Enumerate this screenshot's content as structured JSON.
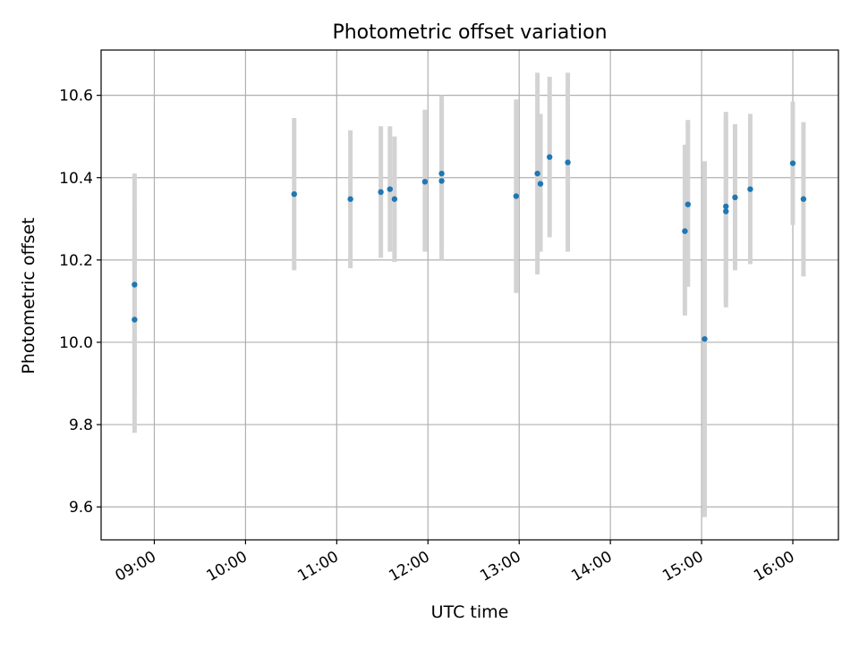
{
  "chart_data": {
    "type": "scatter",
    "title": "Photometric offset variation",
    "xlabel": "UTC time",
    "ylabel": "Photometric offset",
    "xlim": [
      "08:25",
      "16:30"
    ],
    "ylim": [
      9.52,
      10.71
    ],
    "x_tick_labels": [
      "09:00",
      "10:00",
      "11:00",
      "12:00",
      "13:00",
      "14:00",
      "15:00",
      "16:00"
    ],
    "y_tick_labels": [
      "9.6",
      "9.8",
      "10.0",
      "10.2",
      "10.4",
      "10.6"
    ],
    "grid": true,
    "errorbar_color": "#d3d3d3",
    "marker_color": "#1f77b4",
    "points": [
      {
        "time": "08:47",
        "value": 10.14,
        "lower": 9.87,
        "upper": 10.41
      },
      {
        "time": "08:47",
        "value": 10.055,
        "lower": 9.78,
        "upper": 10.33
      },
      {
        "time": "10:32",
        "value": 10.36,
        "lower": 10.175,
        "upper": 10.545
      },
      {
        "time": "11:09",
        "value": 10.348,
        "lower": 10.18,
        "upper": 10.515
      },
      {
        "time": "11:29",
        "value": 10.365,
        "lower": 10.205,
        "upper": 10.525
      },
      {
        "time": "11:35",
        "value": 10.372,
        "lower": 10.22,
        "upper": 10.525
      },
      {
        "time": "11:38",
        "value": 10.348,
        "lower": 10.195,
        "upper": 10.5
      },
      {
        "time": "11:58",
        "value": 10.39,
        "lower": 10.22,
        "upper": 10.565
      },
      {
        "time": "12:09",
        "value": 10.41,
        "lower": 10.225,
        "upper": 10.6
      },
      {
        "time": "12:09",
        "value": 10.392,
        "lower": 10.2,
        "upper": 10.59
      },
      {
        "time": "12:58",
        "value": 10.355,
        "lower": 10.12,
        "upper": 10.59
      },
      {
        "time": "13:12",
        "value": 10.41,
        "lower": 10.165,
        "upper": 10.655
      },
      {
        "time": "13:14",
        "value": 10.385,
        "lower": 10.22,
        "upper": 10.555
      },
      {
        "time": "13:20",
        "value": 10.45,
        "lower": 10.255,
        "upper": 10.645
      },
      {
        "time": "13:32",
        "value": 10.437,
        "lower": 10.22,
        "upper": 10.655
      },
      {
        "time": "14:49",
        "value": 10.27,
        "lower": 10.065,
        "upper": 10.48
      },
      {
        "time": "14:51",
        "value": 10.335,
        "lower": 10.135,
        "upper": 10.54
      },
      {
        "time": "15:02",
        "value": 10.008,
        "lower": 9.575,
        "upper": 10.44
      },
      {
        "time": "15:16",
        "value": 10.33,
        "lower": 10.1,
        "upper": 10.56
      },
      {
        "time": "15:16",
        "value": 10.318,
        "lower": 10.085,
        "upper": 10.545
      },
      {
        "time": "15:22",
        "value": 10.352,
        "lower": 10.175,
        "upper": 10.53
      },
      {
        "time": "15:32",
        "value": 10.372,
        "lower": 10.19,
        "upper": 10.555
      },
      {
        "time": "16:00",
        "value": 10.435,
        "lower": 10.285,
        "upper": 10.585
      },
      {
        "time": "16:07",
        "value": 10.348,
        "lower": 10.16,
        "upper": 10.535
      }
    ]
  }
}
